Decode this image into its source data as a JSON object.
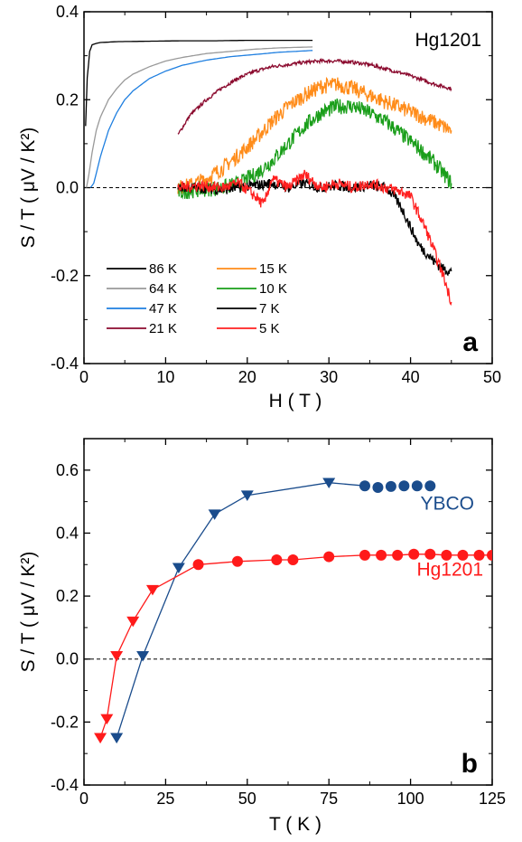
{
  "chart_data": [
    {
      "type": "line",
      "panel_label": "a",
      "annotation": "Hg1201",
      "xlabel": "H ( T )",
      "ylabel": "S / T ( μV / K²)",
      "xlim": [
        0,
        50
      ],
      "ylim": [
        -0.4,
        0.4
      ],
      "xticks": [
        "0",
        "10",
        "20",
        "30",
        "40",
        "50"
      ],
      "yticks": [
        "-0.4",
        "-0.2",
        "0.0",
        "0.2",
        "0.4"
      ],
      "reference_line": {
        "y": 0.0,
        "style": "dashed"
      },
      "legend_position": "lower-left",
      "series": [
        {
          "name": "86 K",
          "color": "#000000",
          "x": [
            0.2,
            0.4,
            0.7,
            1.0,
            1.5,
            2.0,
            4,
            8,
            12,
            16,
            20,
            24,
            28
          ],
          "y": [
            0.14,
            0.25,
            0.31,
            0.325,
            0.328,
            0.33,
            0.332,
            0.333,
            0.334,
            0.334,
            0.335,
            0.335,
            0.335
          ]
        },
        {
          "name": "64 K",
          "color": "#999999",
          "x": [
            0.3,
            0.6,
            1,
            1.5,
            2,
            3,
            4,
            5,
            6,
            8,
            10,
            12,
            15,
            18,
            21,
            24,
            28
          ],
          "y": [
            0.0,
            0.03,
            0.08,
            0.13,
            0.16,
            0.2,
            0.225,
            0.245,
            0.258,
            0.275,
            0.288,
            0.296,
            0.305,
            0.31,
            0.315,
            0.318,
            0.32
          ]
        },
        {
          "name": "47 K",
          "color": "#1f7fe0",
          "x": [
            0.8,
            1.2,
            1.6,
            2,
            2.5,
            3,
            4,
            5,
            6,
            8,
            10,
            12,
            15,
            18,
            21,
            24,
            28
          ],
          "y": [
            0.0,
            0.01,
            0.04,
            0.07,
            0.1,
            0.13,
            0.17,
            0.2,
            0.22,
            0.248,
            0.265,
            0.278,
            0.29,
            0.298,
            0.303,
            0.308,
            0.312
          ]
        },
        {
          "name": "21 K",
          "color": "#8b0a2e",
          "x": [
            11.5,
            13,
            15,
            17,
            19,
            21,
            23,
            25,
            27,
            29,
            31,
            33,
            35,
            37,
            39,
            41,
            43,
            45
          ],
          "y": [
            0.12,
            0.165,
            0.2,
            0.228,
            0.25,
            0.265,
            0.275,
            0.28,
            0.285,
            0.288,
            0.288,
            0.285,
            0.28,
            0.27,
            0.26,
            0.248,
            0.235,
            0.225
          ]
        },
        {
          "name": "15 K",
          "color": "#ff8c1a",
          "x": [
            11.5,
            13,
            15,
            17,
            19,
            21,
            23,
            25,
            27,
            29,
            31,
            33,
            35,
            37,
            39,
            41,
            43,
            45
          ],
          "y": [
            0.0,
            0.005,
            0.02,
            0.045,
            0.075,
            0.11,
            0.15,
            0.185,
            0.21,
            0.23,
            0.235,
            0.225,
            0.21,
            0.195,
            0.18,
            0.165,
            0.148,
            0.13
          ]
        },
        {
          "name": "10 K",
          "color": "#1a9e1a",
          "x": [
            11.5,
            14,
            17,
            19,
            21,
            23,
            25,
            27,
            29,
            31,
            33,
            35,
            37,
            39,
            41,
            43,
            45
          ],
          "y": [
            -0.01,
            -0.005,
            0.0,
            0.01,
            0.03,
            0.06,
            0.1,
            0.14,
            0.17,
            0.185,
            0.185,
            0.17,
            0.15,
            0.12,
            0.09,
            0.055,
            0.01
          ]
        },
        {
          "name": "7 K",
          "color": "#000000",
          "x": [
            11.5,
            14,
            17,
            19,
            21,
            23,
            25,
            27,
            29,
            31,
            33,
            35,
            37,
            38,
            39,
            40,
            41,
            42,
            43,
            44,
            45
          ],
          "y": [
            0.0,
            0.0,
            -0.005,
            0.0,
            0.005,
            0.01,
            0.0,
            0.01,
            0.0,
            0.005,
            0.0,
            0.005,
            0.0,
            -0.02,
            -0.05,
            -0.09,
            -0.13,
            -0.15,
            -0.17,
            -0.185,
            -0.19
          ]
        },
        {
          "name": "5 K",
          "color": "#ff2020",
          "x": [
            11.5,
            14,
            17,
            19,
            21,
            22,
            23,
            25,
            27,
            29,
            31,
            33,
            35,
            37,
            39,
            40,
            41,
            42,
            43,
            44,
            45
          ],
          "y": [
            0.0,
            0.005,
            0.0,
            0.01,
            -0.02,
            -0.04,
            0.02,
            0.0,
            0.03,
            0.0,
            0.01,
            0.0,
            0.01,
            0.0,
            -0.01,
            -0.02,
            -0.06,
            -0.1,
            -0.15,
            -0.2,
            -0.26
          ]
        }
      ]
    },
    {
      "type": "line",
      "panel_label": "b",
      "xlabel": "T ( K )",
      "ylabel": "S / T ( μV / K²)",
      "xlim": [
        0,
        125
      ],
      "ylim": [
        -0.4,
        0.7
      ],
      "xticks": [
        "0",
        "25",
        "50",
        "75",
        "100",
        "125"
      ],
      "yticks": [
        "-0.4",
        "-0.2",
        "0.0",
        "0.2",
        "0.4",
        "0.6"
      ],
      "reference_line": {
        "y": 0.0,
        "style": "dashed"
      },
      "series": [
        {
          "name": "YBCO",
          "color": "#1a4c8c",
          "line": {
            "x": [
              10,
              18,
              29,
              40,
              50,
              75,
              86
            ],
            "y": [
              -0.25,
              0.01,
              0.29,
              0.46,
              0.52,
              0.56,
              0.55
            ]
          },
          "triangles": {
            "x": [
              10,
              18,
              29,
              40,
              50,
              75
            ],
            "y": [
              -0.25,
              0.01,
              0.29,
              0.46,
              0.52,
              0.56
            ]
          },
          "circles": {
            "x": [
              86,
              90,
              94,
              98,
              102,
              106
            ],
            "y": [
              0.55,
              0.545,
              0.548,
              0.55,
              0.55,
              0.55
            ]
          }
        },
        {
          "name": "Hg1201",
          "color": "#ff1a1a",
          "line": {
            "x": [
              5,
              7,
              10,
              15,
              21,
              35,
              47,
              59,
              64,
              75,
              86,
              91,
              96,
              101,
              106,
              111,
              116,
              121,
              125
            ],
            "y": [
              -0.25,
              -0.19,
              0.01,
              0.12,
              0.22,
              0.3,
              0.31,
              0.315,
              0.315,
              0.325,
              0.33,
              0.33,
              0.33,
              0.333,
              0.333,
              0.33,
              0.33,
              0.33,
              0.33
            ]
          },
          "triangles": {
            "x": [
              5,
              7,
              10,
              15,
              21
            ],
            "y": [
              -0.25,
              -0.19,
              0.01,
              0.12,
              0.22
            ]
          },
          "circles": {
            "x": [
              35,
              47,
              59,
              64,
              75,
              86,
              91,
              96,
              101,
              106,
              111,
              116,
              121,
              125
            ],
            "y": [
              0.3,
              0.31,
              0.315,
              0.315,
              0.325,
              0.33,
              0.33,
              0.33,
              0.333,
              0.333,
              0.33,
              0.33,
              0.33,
              0.33
            ]
          }
        }
      ]
    }
  ]
}
